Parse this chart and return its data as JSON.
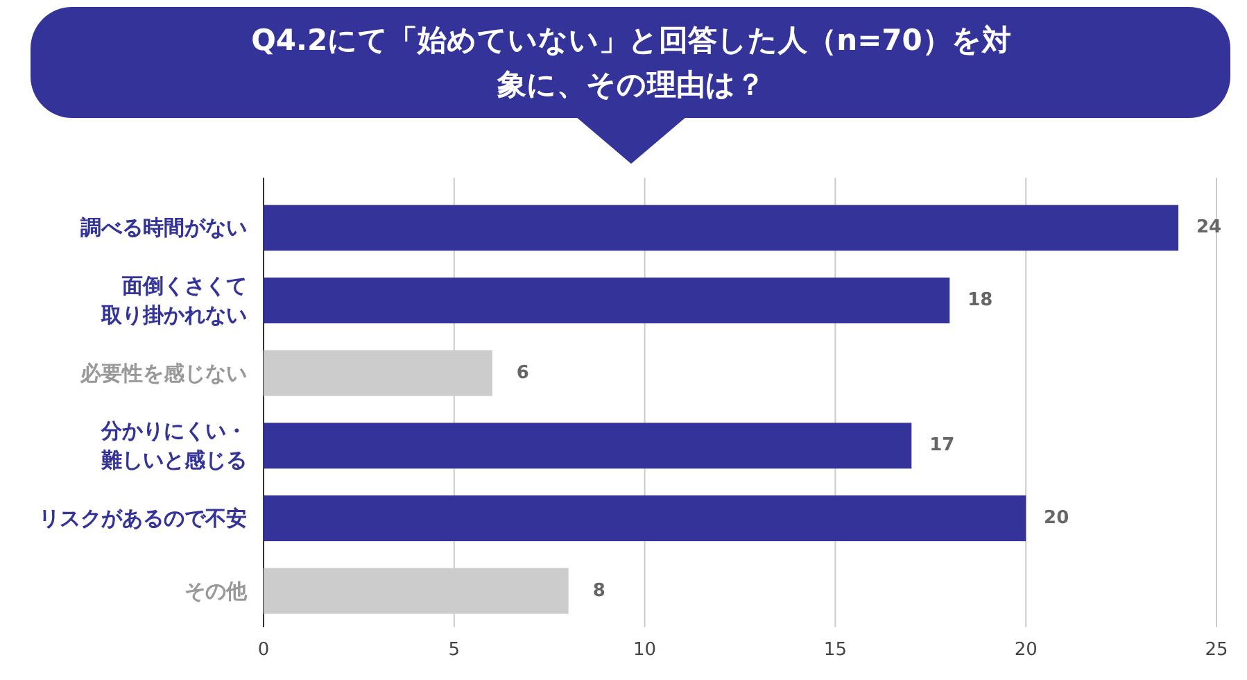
{
  "chart_data": {
    "type": "bar",
    "orientation": "horizontal",
    "title": "Q4.2にて「始めていない」と回答した人（n=70）を対象に、その理由は？",
    "categories": [
      "調べる時間がない",
      "面倒くさくて取り掛かれない",
      "必要性を感じない",
      "分かりにくい・難しいと感じる",
      "リスクがあるので不安",
      "その他"
    ],
    "values": [
      24,
      18,
      6,
      17,
      20,
      8
    ],
    "colors": [
      "#333399",
      "#333399",
      "#cccccc",
      "#333399",
      "#333399",
      "#cccccc"
    ],
    "xlim": [
      0,
      25
    ],
    "xticks": [
      0,
      5,
      10,
      15,
      20,
      25
    ],
    "grid": "x",
    "data_labels": true
  }
}
